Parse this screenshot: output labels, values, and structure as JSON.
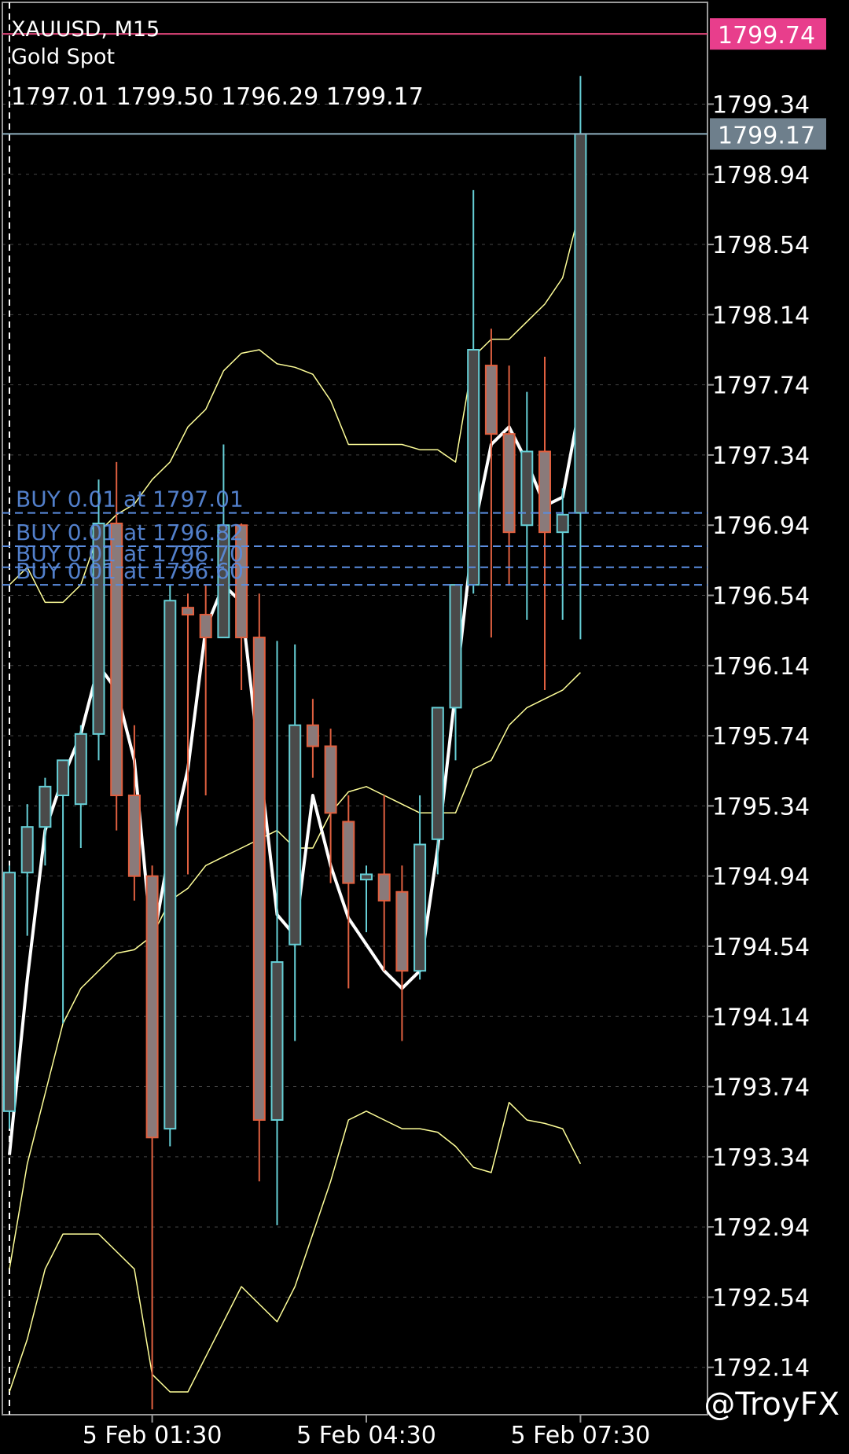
{
  "header": {
    "symbol_timeframe": "XAUUSD, M15",
    "description": "Gold Spot",
    "ohlc": "1797.01 1799.50 1796.29 1799.17"
  },
  "watermark": "@TroyFX",
  "colors": {
    "background": "#000000",
    "bull_candle": "#66cfd6",
    "bear_candle": "#e06040",
    "ma_line": "#ffffff",
    "bands": "#ffff99",
    "ask_line": "#e0457a",
    "bid_line": "#8fb0c0",
    "order_line": "#5b8de0",
    "grid": "#8a8a8a"
  },
  "chart_data": {
    "type": "candlestick",
    "symbol": "XAUUSD",
    "timeframe": "M15",
    "ylim": [
      1791.87,
      1799.92
    ],
    "y_ticks": [
      1799.34,
      1798.94,
      1798.54,
      1798.14,
      1797.74,
      1797.34,
      1796.94,
      1796.54,
      1796.14,
      1795.74,
      1795.34,
      1794.94,
      1794.54,
      1794.14,
      1793.74,
      1793.34,
      1792.94,
      1792.54,
      1792.14
    ],
    "y_tick_labels": [
      "1799.34",
      "1798.94",
      "1798.54",
      "1798.14",
      "1797.74",
      "1797.34",
      "1796.94",
      "1796.54",
      "1796.14",
      "1795.74",
      "1795.34",
      "1794.94",
      "1794.54",
      "1794.14",
      "1793.74",
      "1793.34",
      "1792.94",
      "1792.54",
      "1792.14"
    ],
    "x_labels": [
      {
        "bar": 8,
        "label": "5 Feb 01:30"
      },
      {
        "bar": 20,
        "label": "5 Feb 04:30"
      },
      {
        "bar": 32,
        "label": "5 Feb 07:30"
      }
    ],
    "ask_price": {
      "value": 1799.74,
      "label": "1799.74"
    },
    "bid_price": {
      "value": 1799.17,
      "label": "1799.17"
    },
    "orders": [
      {
        "label": "BUY 0.01 at 1797.01",
        "price": 1797.01
      },
      {
        "label": "BUY 0.01 at 1796.82",
        "price": 1796.82
      },
      {
        "label": "BUY 0.01 at 1796.70",
        "price": 1796.7
      },
      {
        "label": "BUY 0.01 at 1796.60",
        "price": 1796.6
      }
    ],
    "candles": [
      {
        "o": 1793.6,
        "h": 1795.0,
        "l": 1793.5,
        "c": 1794.96
      },
      {
        "o": 1794.96,
        "h": 1795.35,
        "l": 1794.6,
        "c": 1795.22
      },
      {
        "o": 1795.22,
        "h": 1795.5,
        "l": 1795.0,
        "c": 1795.45
      },
      {
        "o": 1795.4,
        "h": 1795.6,
        "l": 1794.1,
        "c": 1795.6
      },
      {
        "o": 1795.35,
        "h": 1795.8,
        "l": 1795.1,
        "c": 1795.75
      },
      {
        "o": 1795.75,
        "h": 1797.2,
        "l": 1795.6,
        "c": 1796.95
      },
      {
        "o": 1796.95,
        "h": 1797.3,
        "l": 1795.2,
        "c": 1795.4
      },
      {
        "o": 1795.4,
        "h": 1795.8,
        "l": 1794.8,
        "c": 1794.94
      },
      {
        "o": 1794.94,
        "h": 1795.0,
        "l": 1791.9,
        "c": 1793.45
      },
      {
        "o": 1793.5,
        "h": 1796.6,
        "l": 1793.4,
        "c": 1796.51
      },
      {
        "o": 1796.47,
        "h": 1796.55,
        "l": 1794.95,
        "c": 1796.43
      },
      {
        "o": 1796.43,
        "h": 1796.6,
        "l": 1795.4,
        "c": 1796.3
      },
      {
        "o": 1796.3,
        "h": 1797.4,
        "l": 1796.3,
        "c": 1796.94
      },
      {
        "o": 1796.94,
        "h": 1796.95,
        "l": 1796.0,
        "c": 1796.3
      },
      {
        "o": 1796.3,
        "h": 1796.55,
        "l": 1793.2,
        "c": 1793.55
      },
      {
        "o": 1793.55,
        "h": 1796.28,
        "l": 1792.95,
        "c": 1794.45
      },
      {
        "o": 1794.55,
        "h": 1796.26,
        "l": 1794.0,
        "c": 1795.8
      },
      {
        "o": 1795.8,
        "h": 1795.95,
        "l": 1795.5,
        "c": 1795.68
      },
      {
        "o": 1795.68,
        "h": 1795.78,
        "l": 1794.9,
        "c": 1795.3
      },
      {
        "o": 1795.25,
        "h": 1795.4,
        "l": 1794.3,
        "c": 1794.9
      },
      {
        "o": 1794.92,
        "h": 1795.0,
        "l": 1794.62,
        "c": 1794.95
      },
      {
        "o": 1794.95,
        "h": 1795.4,
        "l": 1794.4,
        "c": 1794.8
      },
      {
        "o": 1794.85,
        "h": 1795.0,
        "l": 1794.0,
        "c": 1794.4
      },
      {
        "o": 1794.4,
        "h": 1795.4,
        "l": 1794.35,
        "c": 1795.12
      },
      {
        "o": 1795.15,
        "h": 1795.9,
        "l": 1794.95,
        "c": 1795.9
      },
      {
        "o": 1795.9,
        "h": 1796.6,
        "l": 1795.6,
        "c": 1796.6
      },
      {
        "o": 1796.6,
        "h": 1798.85,
        "l": 1796.55,
        "c": 1797.94
      },
      {
        "o": 1797.85,
        "h": 1798.06,
        "l": 1796.3,
        "c": 1797.46
      },
      {
        "o": 1797.46,
        "h": 1797.85,
        "l": 1796.6,
        "c": 1796.9
      },
      {
        "o": 1796.94,
        "h": 1797.7,
        "l": 1796.4,
        "c": 1797.36
      },
      {
        "o": 1797.36,
        "h": 1797.9,
        "l": 1796.0,
        "c": 1796.9
      },
      {
        "o": 1796.9,
        "h": 1797.15,
        "l": 1796.4,
        "c": 1797.0
      },
      {
        "o": 1797.01,
        "h": 1799.5,
        "l": 1796.29,
        "c": 1799.17
      }
    ],
    "ma": [
      1793.35,
      1794.35,
      1795.2,
      1795.5,
      1795.75,
      1796.14,
      1796.0,
      1795.6,
      1794.54,
      1795.1,
      1795.55,
      1796.35,
      1796.6,
      1796.5,
      1795.6,
      1794.72,
      1794.6,
      1795.4,
      1795.0,
      1794.7,
      1794.55,
      1794.4,
      1794.3,
      1794.4,
      1795.1,
      1796.0,
      1796.9,
      1797.4,
      1797.5,
      1797.3,
      1797.05,
      1797.1,
      1797.64
    ],
    "upper_band": [
      1796.6,
      1796.7,
      1796.5,
      1796.5,
      1796.6,
      1796.9,
      1797.0,
      1797.06,
      1797.2,
      1797.3,
      1797.5,
      1797.6,
      1797.82,
      1797.92,
      1797.94,
      1797.86,
      1797.84,
      1797.8,
      1797.65,
      1797.4,
      1797.4,
      1797.4,
      1797.4,
      1797.37,
      1797.37,
      1797.3,
      1797.9,
      1798.0,
      1798.0,
      1798.1,
      1798.2,
      1798.35,
      1798.75
    ],
    "middle_band": [
      1792.7,
      1793.3,
      1793.7,
      1794.1,
      1794.3,
      1794.4,
      1794.5,
      1794.52,
      1794.6,
      1794.8,
      1794.87,
      1795.0,
      1795.05,
      1795.1,
      1795.15,
      1795.2,
      1795.1,
      1795.1,
      1795.3,
      1795.42,
      1795.45,
      1795.4,
      1795.35,
      1795.3,
      1795.3,
      1795.3,
      1795.55,
      1795.6,
      1795.8,
      1795.9,
      1795.95,
      1796.0,
      1796.1
    ],
    "lower_band": [
      1792.0,
      1792.3,
      1792.7,
      1792.9,
      1792.9,
      1792.9,
      1792.8,
      1792.7,
      1792.1,
      1792.0,
      1792.0,
      1792.2,
      1792.4,
      1792.6,
      1792.5,
      1792.4,
      1792.6,
      1792.9,
      1793.2,
      1793.55,
      1793.6,
      1793.55,
      1793.5,
      1793.5,
      1793.48,
      1793.4,
      1793.28,
      1793.25,
      1793.65,
      1793.55,
      1793.53,
      1793.5,
      1793.3
    ]
  }
}
